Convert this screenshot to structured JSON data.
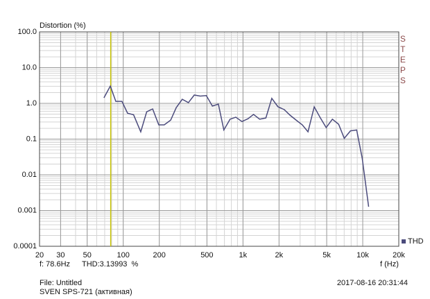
{
  "chart_data": {
    "type": "line",
    "title": "Distortion (%)",
    "x_label": "f (Hz)",
    "side_label": "STEPS",
    "log_x": true,
    "log_y": true,
    "grid": true,
    "xlim": [
      20,
      20000
    ],
    "ylim": [
      0.0001,
      100
    ],
    "xticks": [
      20,
      30,
      50,
      100,
      200,
      500,
      {
        "value": 1000,
        "label": "1k"
      },
      {
        "value": 2000,
        "label": "2k"
      },
      {
        "value": 5000,
        "label": "5k"
      },
      {
        "value": 10000,
        "label": "10k"
      },
      {
        "value": 20000,
        "label": "20k"
      }
    ],
    "yticks": [
      0.0001,
      0.001,
      0.01,
      0.1,
      {
        "value": 1,
        "label": "1.0"
      },
      {
        "value": 10,
        "label": "10.0"
      },
      {
        "value": 100,
        "label": "100.0"
      }
    ],
    "legend_position": "lower right",
    "cursor": {
      "x": 78.6,
      "color": "#c8c400",
      "freq_label": "f: 78.6Hz",
      "value_label": "THD:3.13993  %"
    },
    "footer": {
      "file": "File: Untitled",
      "device": "SVEN SPS-721 (активная)",
      "date": "2017-08-16 20:31:44"
    },
    "x": [
      69,
      78,
      86.7,
      97.5,
      108.7,
      122,
      140,
      157,
      176,
      198,
      220,
      249,
      277,
      311,
      350,
      392,
      440,
      494,
      555,
      623,
      692,
      780,
      871,
      980,
      1100,
      1225,
      1378,
      1552,
      1740,
      1961,
      2210,
      2465,
      2777,
      3130,
      3490,
      3935,
      4430,
      4950,
      5580,
      6290,
      7010,
      7900,
      8900,
      9900,
      11200
    ],
    "series": [
      {
        "name": "THD",
        "color": "#4b4b7c",
        "values": [
          1.43,
          3.05,
          1.14,
          1.14,
          0.53,
          0.48,
          0.16,
          0.58,
          0.7,
          0.25,
          0.25,
          0.34,
          0.76,
          1.3,
          1.05,
          1.71,
          1.6,
          1.65,
          0.84,
          0.95,
          0.18,
          0.36,
          0.41,
          0.31,
          0.37,
          0.49,
          0.36,
          0.39,
          1.38,
          0.8,
          0.67,
          0.47,
          0.34,
          0.25,
          0.16,
          0.8,
          0.39,
          0.21,
          0.36,
          0.26,
          0.105,
          0.17,
          0.18,
          0.029,
          0.00128
        ]
      }
    ]
  }
}
